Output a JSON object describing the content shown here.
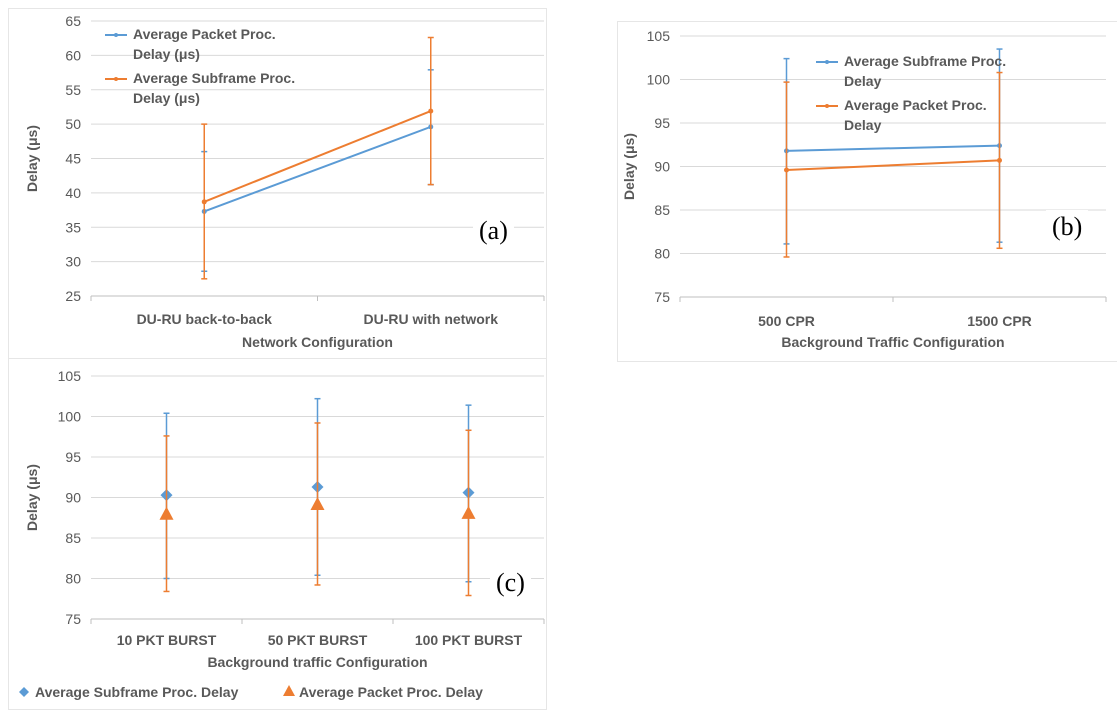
{
  "chart_data": [
    {
      "id": "a",
      "panel_label": "(a)",
      "type": "line",
      "categories": [
        "DU-RU back-to-back",
        "DU-RU with network"
      ],
      "series": [
        {
          "name": "Average Packet Proc. Delay (μs)",
          "color": "#5B9BD5",
          "values": [
            37.3,
            49.6
          ],
          "error_low": [
            28.6,
            41.2
          ],
          "error_high": [
            46.0,
            57.9
          ]
        },
        {
          "name": "Average Subframe Proc. Delay (μs)",
          "color": "#ED7D31",
          "values": [
            38.7,
            51.9
          ],
          "error_low": [
            27.5,
            41.2
          ],
          "error_high": [
            50.0,
            62.6
          ]
        }
      ],
      "xlabel": "Network Configuration",
      "ylabel": "Delay (μs)",
      "ylim": [
        25,
        65
      ],
      "yticks": [
        25,
        30,
        35,
        40,
        45,
        50,
        55,
        60,
        65
      ],
      "grid": true,
      "legend_position": "top-left"
    },
    {
      "id": "b",
      "panel_label": "(b)",
      "type": "line",
      "categories": [
        "500 CPR",
        "1500 CPR"
      ],
      "series": [
        {
          "name": "Average Subframe Proc. Delay",
          "color": "#5B9BD5",
          "values": [
            91.8,
            92.4
          ],
          "error_low": [
            81.1,
            81.3
          ],
          "error_high": [
            102.4,
            103.5
          ]
        },
        {
          "name": "Average Packet Proc. Delay",
          "color": "#ED7D31",
          "values": [
            89.6,
            90.7
          ],
          "error_low": [
            79.6,
            80.6
          ],
          "error_high": [
            99.7,
            100.8
          ]
        }
      ],
      "xlabel": "Background Traffic Configuration",
      "ylabel": "Delay (μs)",
      "ylim": [
        75,
        105
      ],
      "yticks": [
        75,
        80,
        85,
        90,
        95,
        100,
        105
      ],
      "grid": true,
      "legend_position": "top-center"
    },
    {
      "id": "c",
      "panel_label": "(c)",
      "type": "scatter",
      "categories": [
        "10 PKT BURST",
        "50 PKT BURST",
        "100 PKT BURST"
      ],
      "series": [
        {
          "name": "Average Subframe Proc. Delay",
          "color": "#5B9BD5",
          "marker": "diamond",
          "values": [
            90.3,
            91.3,
            90.6
          ],
          "error_low": [
            80.0,
            80.4,
            79.6
          ],
          "error_high": [
            100.4,
            102.2,
            101.4
          ]
        },
        {
          "name": "Average Packet Proc. Delay",
          "color": "#ED7D31",
          "marker": "triangle",
          "values": [
            88.0,
            89.2,
            88.1
          ],
          "error_low": [
            78.4,
            79.2,
            77.9
          ],
          "error_high": [
            97.6,
            99.2,
            98.3
          ]
        }
      ],
      "xlabel": "Background traffic Configuration",
      "ylabel": "Delay (μs)",
      "ylim": [
        75,
        105
      ],
      "yticks": [
        75,
        80,
        85,
        90,
        95,
        100,
        105
      ],
      "grid": true,
      "legend_position": "bottom"
    }
  ]
}
